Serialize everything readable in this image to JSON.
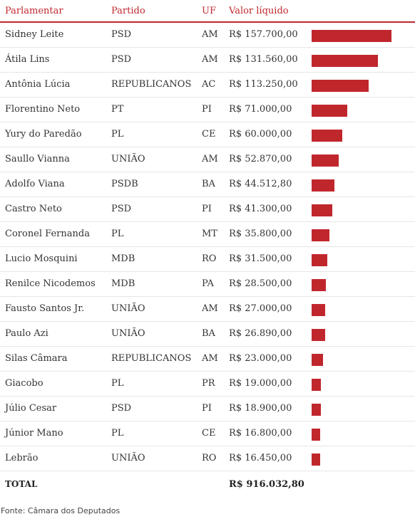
{
  "header": {
    "name": "Parlamentar",
    "party": "Partido",
    "uf": "UF",
    "value": "Valor líquido"
  },
  "bar_color": "#c0272d",
  "rows": [
    {
      "name": "Sidney Leite",
      "party": "PSD",
      "uf": "AM",
      "value_text": "R$ 157.700,00",
      "value": 157700.0
    },
    {
      "name": "Átila Lins",
      "party": "PSD",
      "uf": "AM",
      "value_text": "R$ 131.560,00",
      "value": 131560.0
    },
    {
      "name": "Antônia Lúcia",
      "party": "REPUBLICANOS",
      "uf": "AC",
      "value_text": "R$ 113.250,00",
      "value": 113250.0
    },
    {
      "name": "Florentino Neto",
      "party": "PT",
      "uf": "PI",
      "value_text": "R$ 71.000,00",
      "value": 71000.0
    },
    {
      "name": "Yury do Paredão",
      "party": "PL",
      "uf": "CE",
      "value_text": "R$ 60.000,00",
      "value": 60000.0
    },
    {
      "name": "Saullo Vianna",
      "party": "UNIÃO",
      "uf": "AM",
      "value_text": "R$ 52.870,00",
      "value": 52870.0
    },
    {
      "name": "Adolfo Viana",
      "party": "PSDB",
      "uf": "BA",
      "value_text": "R$ 44.512,80",
      "value": 44512.8
    },
    {
      "name": "Castro Neto",
      "party": "PSD",
      "uf": "PI",
      "value_text": "R$ 41.300,00",
      "value": 41300.0
    },
    {
      "name": "Coronel Fernanda",
      "party": "PL",
      "uf": "MT",
      "value_text": "R$ 35.800,00",
      "value": 35800.0
    },
    {
      "name": "Lucio Mosquini",
      "party": "MDB",
      "uf": "RO",
      "value_text": "R$ 31.500,00",
      "value": 31500.0
    },
    {
      "name": "Renilce Nicodemos",
      "party": "MDB",
      "uf": "PA",
      "value_text": "R$ 28.500,00",
      "value": 28500.0
    },
    {
      "name": "Fausto Santos Jr.",
      "party": "UNIÃO",
      "uf": "AM",
      "value_text": "R$ 27.000,00",
      "value": 27000.0
    },
    {
      "name": "Paulo Azi",
      "party": "UNIÃO",
      "uf": "BA",
      "value_text": "R$ 26.890,00",
      "value": 26890.0
    },
    {
      "name": "Silas Câmara",
      "party": "REPUBLICANOS",
      "uf": "AM",
      "value_text": "R$ 23.000,00",
      "value": 23000.0
    },
    {
      "name": "Giacobo",
      "party": "PL",
      "uf": "PR",
      "value_text": "R$ 19.000,00",
      "value": 19000.0
    },
    {
      "name": "Júlio Cesar",
      "party": "PSD",
      "uf": "PI",
      "value_text": "R$ 18.900,00",
      "value": 18900.0
    },
    {
      "name": "Júnior Mano",
      "party": "PL",
      "uf": "CE",
      "value_text": "R$ 16.800,00",
      "value": 16800.0
    },
    {
      "name": "Lebrão",
      "party": "UNIÃO",
      "uf": "RO",
      "value_text": "R$ 16.450,00",
      "value": 16450.0
    }
  ],
  "total": {
    "label": "TOTAL",
    "value_text": "R$ 916.032,80"
  },
  "source": "Fonte: Câmara dos Deputados"
}
